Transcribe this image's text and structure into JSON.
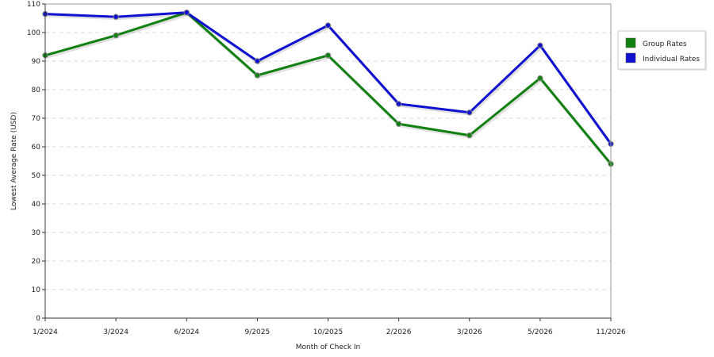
{
  "chart_data": {
    "type": "line",
    "title": "",
    "xlabel": "Month of Check In",
    "ylabel": "Lowest Average Rate (USD)",
    "ylim": [
      0,
      110
    ],
    "yticks": [
      0,
      10,
      20,
      30,
      40,
      50,
      60,
      70,
      80,
      90,
      100,
      110
    ],
    "grid": true,
    "legend_position": "top-right",
    "categories": [
      "1/2024",
      "3/2024",
      "6/2024",
      "9/2025",
      "10/2025",
      "2/2026",
      "3/2026",
      "5/2026",
      "11/2026"
    ],
    "series": [
      {
        "name": "Group Rates",
        "color": "#108010",
        "values": [
          92,
          99,
          107,
          85,
          92,
          68,
          64,
          84,
          54
        ]
      },
      {
        "name": "Individual Rates",
        "color": "#1010d0",
        "values": [
          106.5,
          105.5,
          107,
          90,
          102.5,
          75,
          72,
          95.5,
          61
        ]
      }
    ]
  }
}
